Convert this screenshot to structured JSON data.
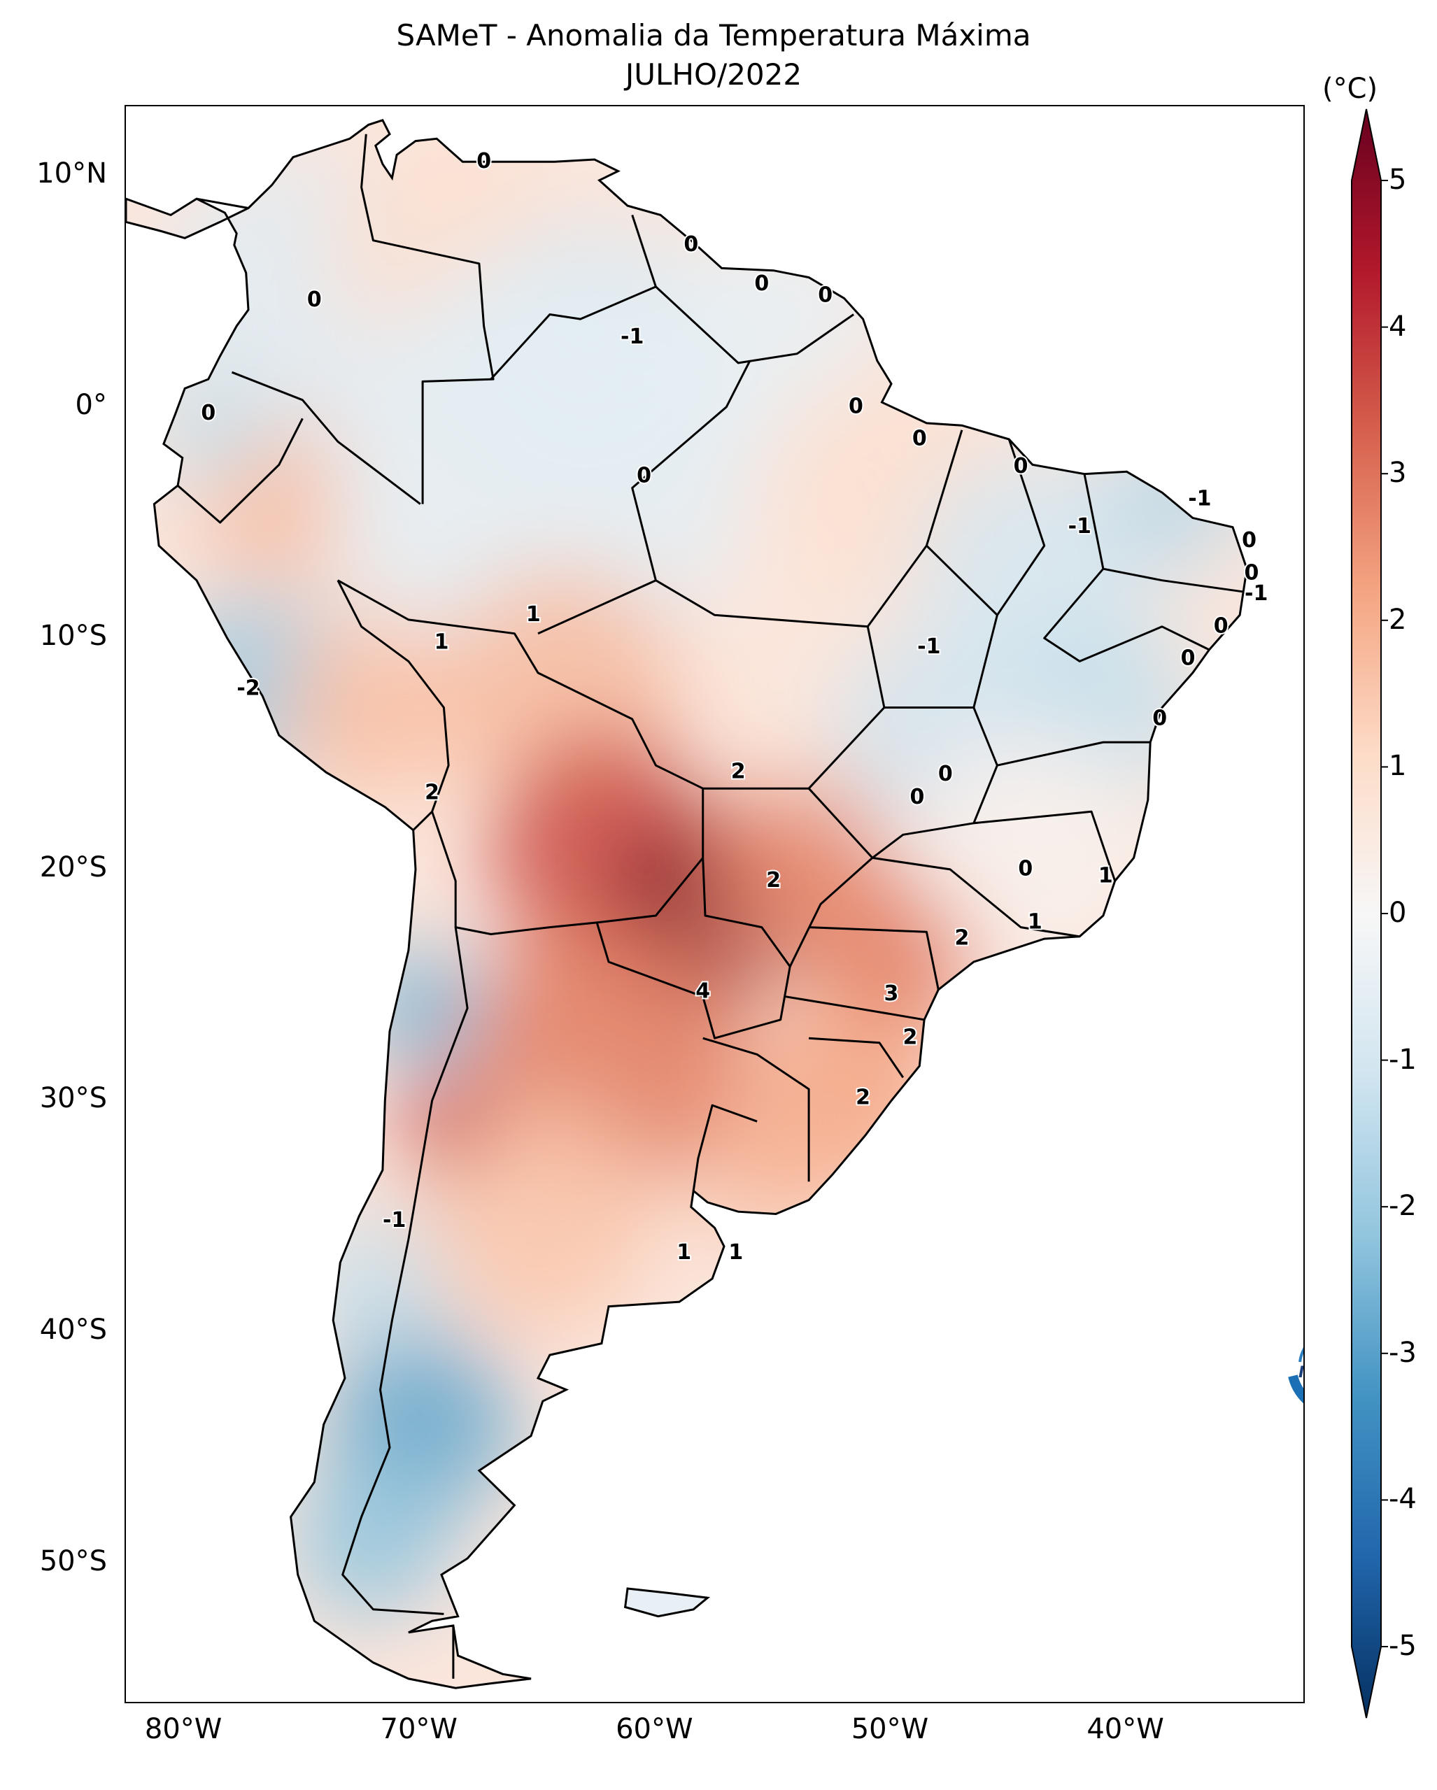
{
  "title_line1": "SAMeT - Anomalia da Temperatura Máxima",
  "title_line2": "JULHO/2022",
  "unit": "(°C)",
  "logo_text": "INPE",
  "lat_ticks": [
    {
      "value": 10,
      "label": "10°N"
    },
    {
      "value": 0,
      "label": "0°"
    },
    {
      "value": -10,
      "label": "10°S"
    },
    {
      "value": -20,
      "label": "20°S"
    },
    {
      "value": -30,
      "label": "30°S"
    },
    {
      "value": -40,
      "label": "40°S"
    },
    {
      "value": -50,
      "label": "50°S"
    }
  ],
  "lon_ticks": [
    {
      "value": -80,
      "label": "80°W"
    },
    {
      "value": -70,
      "label": "70°W"
    },
    {
      "value": -60,
      "label": "60°W"
    },
    {
      "value": -50,
      "label": "50°W"
    },
    {
      "value": -40,
      "label": "40°W"
    }
  ],
  "extent": {
    "lon_min": -82.5,
    "lon_max": -32.5,
    "lat_min": -56.0,
    "lat_max": 13.0
  },
  "colorbar": {
    "min": -5,
    "max": 5,
    "ticks": [
      {
        "value": 5,
        "label": "5"
      },
      {
        "value": 4,
        "label": "4"
      },
      {
        "value": 3,
        "label": "3"
      },
      {
        "value": 2,
        "label": "2"
      },
      {
        "value": 1,
        "label": "1"
      },
      {
        "value": 0,
        "label": "0"
      },
      {
        "value": -1,
        "label": "-1"
      },
      {
        "value": -2,
        "label": "-2"
      },
      {
        "value": -3,
        "label": "-3"
      },
      {
        "value": -4,
        "label": "-4"
      },
      {
        "value": -5,
        "label": "-5"
      }
    ],
    "colors": [
      "#053061",
      "#2166ac",
      "#4393c3",
      "#92c5de",
      "#d1e5f0",
      "#f7f7f7",
      "#fddbc7",
      "#f4a582",
      "#d6604d",
      "#b2182b",
      "#67001f"
    ]
  },
  "anomaly_regions": [
    {
      "lon": -75,
      "lat": 5,
      "value": -0.6,
      "radius": 6
    },
    {
      "lon": -69,
      "lat": 7,
      "value": 0.8,
      "radius": 5
    },
    {
      "lon": -63,
      "lat": 2,
      "value": -0.8,
      "radius": 6
    },
    {
      "lon": -55,
      "lat": 3,
      "value": -0.4,
      "radius": 5
    },
    {
      "lon": -76,
      "lat": -4,
      "value": 1.6,
      "radius": 3.5
    },
    {
      "lon": -79,
      "lat": -1,
      "value": -1.2,
      "radius": 2.5
    },
    {
      "lon": -65,
      "lat": -3,
      "value": -0.5,
      "radius": 9
    },
    {
      "lon": -50,
      "lat": -3,
      "value": 0.8,
      "radius": 5
    },
    {
      "lon": -44,
      "lat": -7,
      "value": -0.9,
      "radius": 5
    },
    {
      "lon": -38,
      "lat": -4,
      "value": -1.4,
      "radius": 3
    },
    {
      "lon": -77,
      "lat": -12,
      "value": -1.8,
      "radius": 4
    },
    {
      "lon": -72,
      "lat": -13,
      "value": 1.5,
      "radius": 4
    },
    {
      "lon": -64,
      "lat": -12,
      "value": 1.6,
      "radius": 5
    },
    {
      "lon": -54,
      "lat": -12,
      "value": 0.6,
      "radius": 5
    },
    {
      "lon": -48,
      "lat": -14,
      "value": -1.0,
      "radius": 4.5
    },
    {
      "lon": -41,
      "lat": -13,
      "value": -1.2,
      "radius": 4
    },
    {
      "lon": -44,
      "lat": -19,
      "value": 0.2,
      "radius": 5
    },
    {
      "lon": -62,
      "lat": -19,
      "value": 3.3,
      "radius": 5
    },
    {
      "lon": -58,
      "lat": -22,
      "value": 4.8,
      "radius": 4
    },
    {
      "lon": -54,
      "lat": -20,
      "value": 2.4,
      "radius": 4
    },
    {
      "lon": -50,
      "lat": -24,
      "value": 2.6,
      "radius": 3.5
    },
    {
      "lon": -52,
      "lat": -30,
      "value": 2.0,
      "radius": 4
    },
    {
      "lon": -62,
      "lat": -28,
      "value": 2.6,
      "radius": 6
    },
    {
      "lon": -55,
      "lat": -33,
      "value": 1.7,
      "radius": 3
    },
    {
      "lon": -65,
      "lat": -35,
      "value": 1.4,
      "radius": 5
    },
    {
      "lon": -69,
      "lat": -31,
      "value": 3.5,
      "radius": 2
    },
    {
      "lon": -70,
      "lat": -26,
      "value": -2.4,
      "radius": 2.5
    },
    {
      "lon": -72,
      "lat": -38,
      "value": -1.2,
      "radius": 3
    },
    {
      "lon": -70,
      "lat": -44,
      "value": -2.6,
      "radius": 4
    },
    {
      "lon": -72,
      "lat": -49,
      "value": -2.0,
      "radius": 3.5
    },
    {
      "lon": -68,
      "lat": -54,
      "value": 0.6,
      "radius": 2
    }
  ],
  "contour_labels": [
    {
      "lon": -67.3,
      "lat": 10.6,
      "text": "0"
    },
    {
      "lon": -74.5,
      "lat": 4.6,
      "text": "0"
    },
    {
      "lon": -79.0,
      "lat": -0.3,
      "text": "0"
    },
    {
      "lon": -58.5,
      "lat": 7.0,
      "text": "0"
    },
    {
      "lon": -55.5,
      "lat": 5.3,
      "text": "0"
    },
    {
      "lon": -52.8,
      "lat": 4.8,
      "text": "0"
    },
    {
      "lon": -61.0,
      "lat": 3.0,
      "text": "-1"
    },
    {
      "lon": -51.5,
      "lat": 0.0,
      "text": "0"
    },
    {
      "lon": -60.5,
      "lat": -3.0,
      "text": "0"
    },
    {
      "lon": -48.8,
      "lat": -1.4,
      "text": "0"
    },
    {
      "lon": -44.5,
      "lat": -2.6,
      "text": "0"
    },
    {
      "lon": -36.9,
      "lat": -4.0,
      "text": "-1"
    },
    {
      "lon": -42.0,
      "lat": -5.2,
      "text": "-1"
    },
    {
      "lon": -34.8,
      "lat": -5.8,
      "text": "0"
    },
    {
      "lon": -34.7,
      "lat": -7.2,
      "text": "0"
    },
    {
      "lon": -34.5,
      "lat": -8.1,
      "text": "-1"
    },
    {
      "lon": -36.0,
      "lat": -9.5,
      "text": "0"
    },
    {
      "lon": -37.4,
      "lat": -10.9,
      "text": "0"
    },
    {
      "lon": -38.6,
      "lat": -13.5,
      "text": "0"
    },
    {
      "lon": -65.2,
      "lat": -9.0,
      "text": "1"
    },
    {
      "lon": -69.1,
      "lat": -10.2,
      "text": "1"
    },
    {
      "lon": -48.4,
      "lat": -10.4,
      "text": "-1"
    },
    {
      "lon": -77.3,
      "lat": -12.2,
      "text": "-2"
    },
    {
      "lon": -56.5,
      "lat": -15.8,
      "text": "2"
    },
    {
      "lon": -47.7,
      "lat": -15.9,
      "text": "0"
    },
    {
      "lon": -48.9,
      "lat": -16.9,
      "text": "0"
    },
    {
      "lon": -69.5,
      "lat": -16.7,
      "text": "2"
    },
    {
      "lon": -55.0,
      "lat": -20.5,
      "text": "2"
    },
    {
      "lon": -44.3,
      "lat": -20.0,
      "text": "0"
    },
    {
      "lon": -40.9,
      "lat": -20.3,
      "text": "1"
    },
    {
      "lon": -47.0,
      "lat": -23.0,
      "text": "2"
    },
    {
      "lon": -43.9,
      "lat": -22.3,
      "text": "1"
    },
    {
      "lon": -58.0,
      "lat": -25.3,
      "text": "4"
    },
    {
      "lon": -50.0,
      "lat": -25.4,
      "text": "3"
    },
    {
      "lon": -49.2,
      "lat": -27.3,
      "text": "2"
    },
    {
      "lon": -51.2,
      "lat": -29.9,
      "text": "2"
    },
    {
      "lon": -71.1,
      "lat": -35.2,
      "text": "-1"
    },
    {
      "lon": -58.8,
      "lat": -36.6,
      "text": "1"
    },
    {
      "lon": -56.6,
      "lat": -36.6,
      "text": "1"
    }
  ]
}
